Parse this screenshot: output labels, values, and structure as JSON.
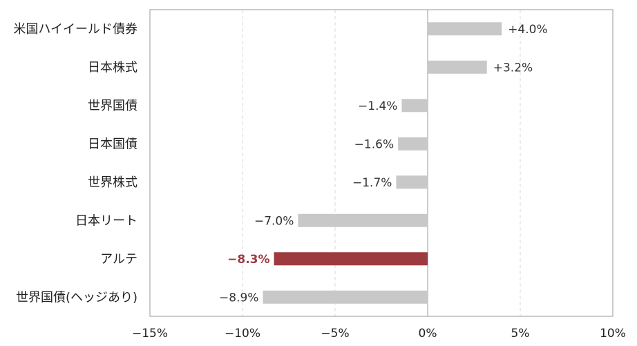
{
  "chart_data": {
    "type": "bar",
    "orientation": "horizontal",
    "categories": [
      "米国ハイイールド債券",
      "日本株式",
      "世界国債",
      "日本国債",
      "世界株式",
      "日本リート",
      "アルテ",
      "世界国債(ヘッジあり)"
    ],
    "values": [
      4.0,
      3.2,
      -1.4,
      -1.6,
      -1.7,
      -7.0,
      -8.3,
      -8.9
    ],
    "data_labels": [
      "+4.0%",
      "+3.2%",
      "−1.4%",
      "−1.6%",
      "−1.7%",
      "−7.0%",
      "−8.3%",
      "−8.9%"
    ],
    "highlight_index": 6,
    "xlim": [
      -15,
      10
    ],
    "x_ticks": [
      -15,
      -10,
      -5,
      0,
      5,
      10
    ],
    "x_tick_labels": [
      "−15%",
      "−10%",
      "−5%",
      "0%",
      "5%",
      "10%"
    ],
    "grid": "vertical dashed",
    "colors": {
      "bar": "#c8c8c8",
      "highlight": "#9c3a40",
      "grid": "#d8d8d8",
      "axis": "#999999"
    },
    "title": "",
    "xlabel": "",
    "ylabel": ""
  }
}
